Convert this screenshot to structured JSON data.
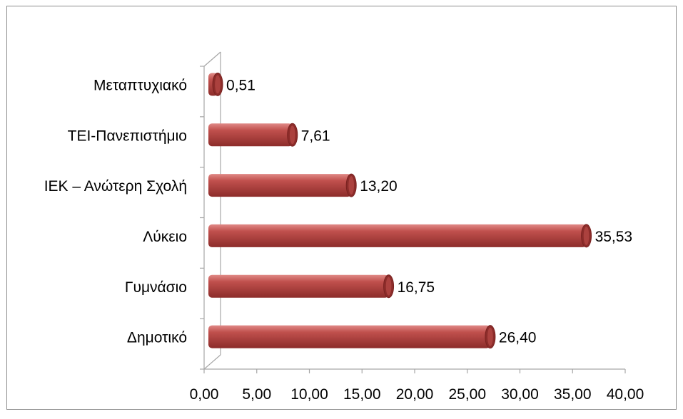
{
  "chart_data": {
    "type": "bar",
    "orientation": "horizontal",
    "style": "3d-cylinder",
    "categories": [
      "Δημοτικό",
      "Γυμνάσιο",
      "Λύκειο",
      "ΙΕΚ – Ανώτερη Σχολή",
      "ΤΕΙ-Πανεπιστήμιο",
      "Μεταπτυχιακό"
    ],
    "values": [
      26.4,
      16.75,
      35.53,
      13.2,
      7.61,
      0.51
    ],
    "value_labels": [
      "26,40",
      "16,75",
      "35,53",
      "13,20",
      "7,61",
      "0,51"
    ],
    "xlim": [
      0,
      40
    ],
    "x_ticks": [
      "0,00",
      "5,00",
      "10,00",
      "15,00",
      "20,00",
      "25,00",
      "30,00",
      "35,00",
      "40,00"
    ],
    "title": "",
    "xlabel": "",
    "ylabel": "",
    "grid": false,
    "legend": "none",
    "colors": {
      "bar": "#c0504d",
      "bar_light": "#e08a87",
      "bar_dark": "#8c2c2a",
      "cap": "#7a2220",
      "axis": "#a6a6a6",
      "frame": "#8c8c8c"
    }
  }
}
